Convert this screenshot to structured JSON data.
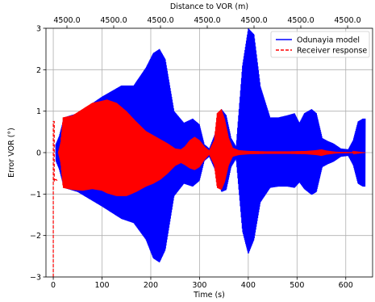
{
  "chart_data": {
    "type": "line",
    "xlabel": "Time (s)",
    "ylabel": "Error VOR (°)",
    "top_xlabel": "Distance to VOR (m)",
    "xlim": [
      -15,
      655
    ],
    "ylim": [
      -3,
      3
    ],
    "x_ticks": [
      0,
      100,
      200,
      300,
      400,
      500,
      600
    ],
    "y_ticks": [
      -3,
      -2,
      -1,
      0,
      1,
      2,
      3
    ],
    "top_ticks": [
      "4500.0",
      "4500.0",
      "4500.0",
      "4500.0",
      "4500.0",
      "4500.0",
      "4500.0",
      "4500.0"
    ],
    "grid": true,
    "legend_position": "top-right",
    "series": [
      {
        "name": "Odunayia model",
        "color": "#0000ff",
        "style": "solid",
        "render": "oscillating-envelope",
        "envelope": {
          "x": [
            5,
            12,
            22,
            50,
            100,
            140,
            165,
            190,
            205,
            218,
            230,
            248,
            268,
            286,
            300,
            310,
            320,
            335,
            345,
            355,
            365,
            375,
            388,
            400,
            412,
            425,
            445,
            462,
            480,
            495,
            505,
            515,
            530,
            540,
            552,
            563,
            575,
            590,
            605,
            615,
            625,
            635,
            640
          ],
          "upper": [
            0.2,
            0.4,
            0.85,
            0.95,
            1.35,
            1.62,
            1.62,
            2.05,
            2.4,
            2.5,
            2.25,
            1.0,
            0.72,
            0.82,
            0.68,
            0.2,
            0.1,
            0.55,
            1.05,
            0.9,
            0.35,
            0.15,
            2.1,
            3.0,
            2.85,
            1.6,
            0.85,
            0.85,
            0.9,
            0.95,
            0.72,
            0.95,
            1.05,
            0.95,
            0.35,
            0.28,
            0.22,
            0.1,
            0.08,
            0.3,
            0.75,
            0.82,
            0.82
          ],
          "lower": [
            -0.2,
            -0.4,
            -0.85,
            -0.95,
            -1.3,
            -1.6,
            -1.7,
            -2.1,
            -2.55,
            -2.65,
            -2.35,
            -1.05,
            -0.75,
            -0.82,
            -0.68,
            -0.2,
            -0.1,
            -0.5,
            -0.95,
            -0.9,
            -0.35,
            -0.15,
            -1.9,
            -2.45,
            -2.1,
            -1.2,
            -0.85,
            -0.82,
            -0.82,
            -0.85,
            -0.72,
            -0.88,
            -1.02,
            -0.95,
            -0.35,
            -0.28,
            -0.22,
            -0.1,
            -0.08,
            -0.3,
            -0.75,
            -0.82,
            -0.82
          ]
        }
      },
      {
        "name": "Receiver response",
        "color": "#ff0000",
        "style": "dashed",
        "render": "oscillating-envelope",
        "initial_transient": {
          "x": [
            0,
            0,
            2,
            2,
            4,
            6,
            8
          ],
          "y": [
            -3.0,
            0.75,
            0.75,
            -0.7,
            -0.65,
            -0.65,
            -0.68
          ]
        },
        "envelope": {
          "x": [
            10,
            15,
            20,
            40,
            60,
            80,
            100,
            110,
            130,
            150,
            170,
            190,
            205,
            220,
            235,
            250,
            262,
            270,
            280,
            290,
            300,
            310,
            320,
            330,
            336,
            345,
            352,
            360,
            368,
            380,
            400,
            440,
            480,
            520,
            540,
            550,
            560,
            580,
            620,
            640
          ],
          "upper": [
            0.0,
            0.25,
            0.85,
            0.9,
            1.05,
            1.2,
            1.25,
            1.28,
            1.2,
            1.0,
            0.75,
            0.52,
            0.42,
            0.32,
            0.22,
            0.1,
            0.08,
            0.15,
            0.3,
            0.38,
            0.3,
            0.15,
            0.05,
            0.3,
            0.95,
            1.05,
            0.8,
            0.35,
            0.12,
            0.06,
            0.04,
            0.03,
            0.03,
            0.04,
            0.06,
            0.08,
            0.05,
            0.02,
            0.01,
            0.0
          ],
          "lower": [
            0.0,
            -0.25,
            -0.85,
            -0.9,
            -0.92,
            -0.88,
            -0.92,
            -0.98,
            -1.05,
            -1.05,
            -0.95,
            -0.82,
            -0.75,
            -0.65,
            -0.5,
            -0.32,
            -0.25,
            -0.3,
            -0.38,
            -0.42,
            -0.35,
            -0.18,
            -0.05,
            -0.3,
            -0.85,
            -0.9,
            -0.7,
            -0.3,
            -0.1,
            -0.06,
            -0.04,
            -0.03,
            -0.03,
            -0.04,
            -0.06,
            -0.08,
            -0.05,
            -0.02,
            -0.01,
            0.0
          ]
        }
      }
    ]
  }
}
